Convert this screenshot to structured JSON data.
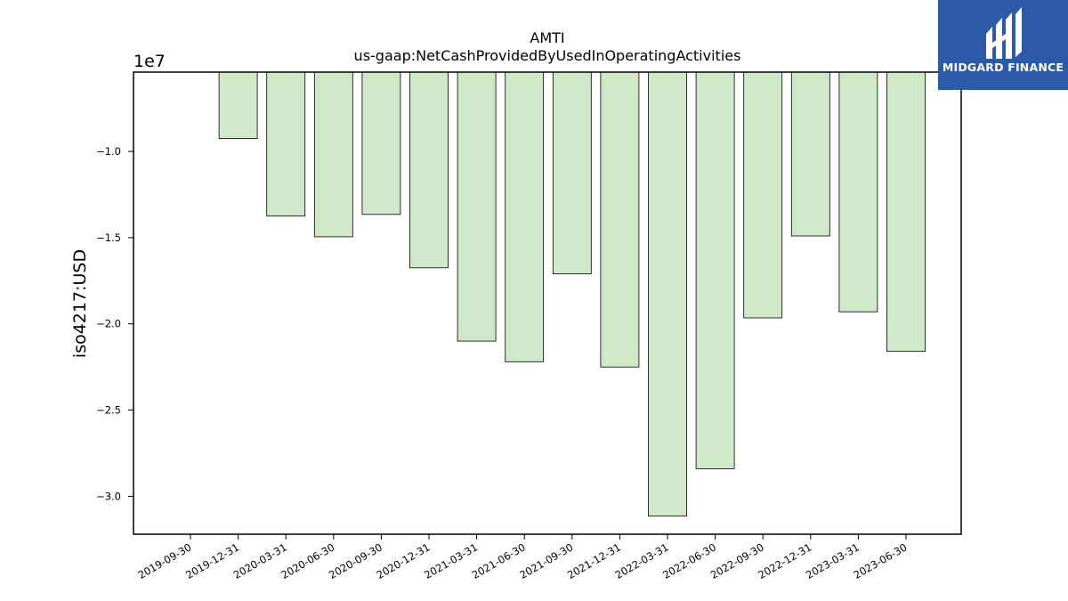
{
  "chart_data": {
    "type": "bar",
    "title": "AMTI",
    "subtitle": "us-gaap:NetCashProvidedByUsedInOperatingActivities",
    "xlabel": "",
    "ylabel": "iso4217:USD",
    "y_scale_label": "1e7",
    "ylim": [
      -32200000,
      -5400000
    ],
    "yticks": [
      -10000000,
      -15000000,
      -20000000,
      -25000000,
      -30000000
    ],
    "ytick_labels": [
      "−1.0",
      "−1.5",
      "−2.0",
      "−2.5",
      "−3.0"
    ],
    "categories": [
      "2019-09-30",
      "2019-12-31",
      "2020-03-31",
      "2020-06-30",
      "2020-09-30",
      "2020-12-31",
      "2021-03-31",
      "2021-06-30",
      "2021-09-30",
      "2021-12-31",
      "2022-03-31",
      "2022-06-30",
      "2022-09-30",
      "2022-12-31",
      "2023-03-31",
      "2023-06-30"
    ],
    "values": [
      null,
      -9250000,
      -13750000,
      -14950000,
      -13650000,
      -16750000,
      -21000000,
      -22200000,
      -17100000,
      -22500000,
      -31150000,
      -28400000,
      -19650000,
      -14900000,
      -19300000,
      -21600000
    ],
    "bar_color": "#cfe9c8",
    "bar_edge_color": "#000000",
    "grid": false,
    "legend": "none"
  },
  "logo": {
    "text": "MIDGARD FINANCE",
    "color": "#2c5aa8"
  }
}
